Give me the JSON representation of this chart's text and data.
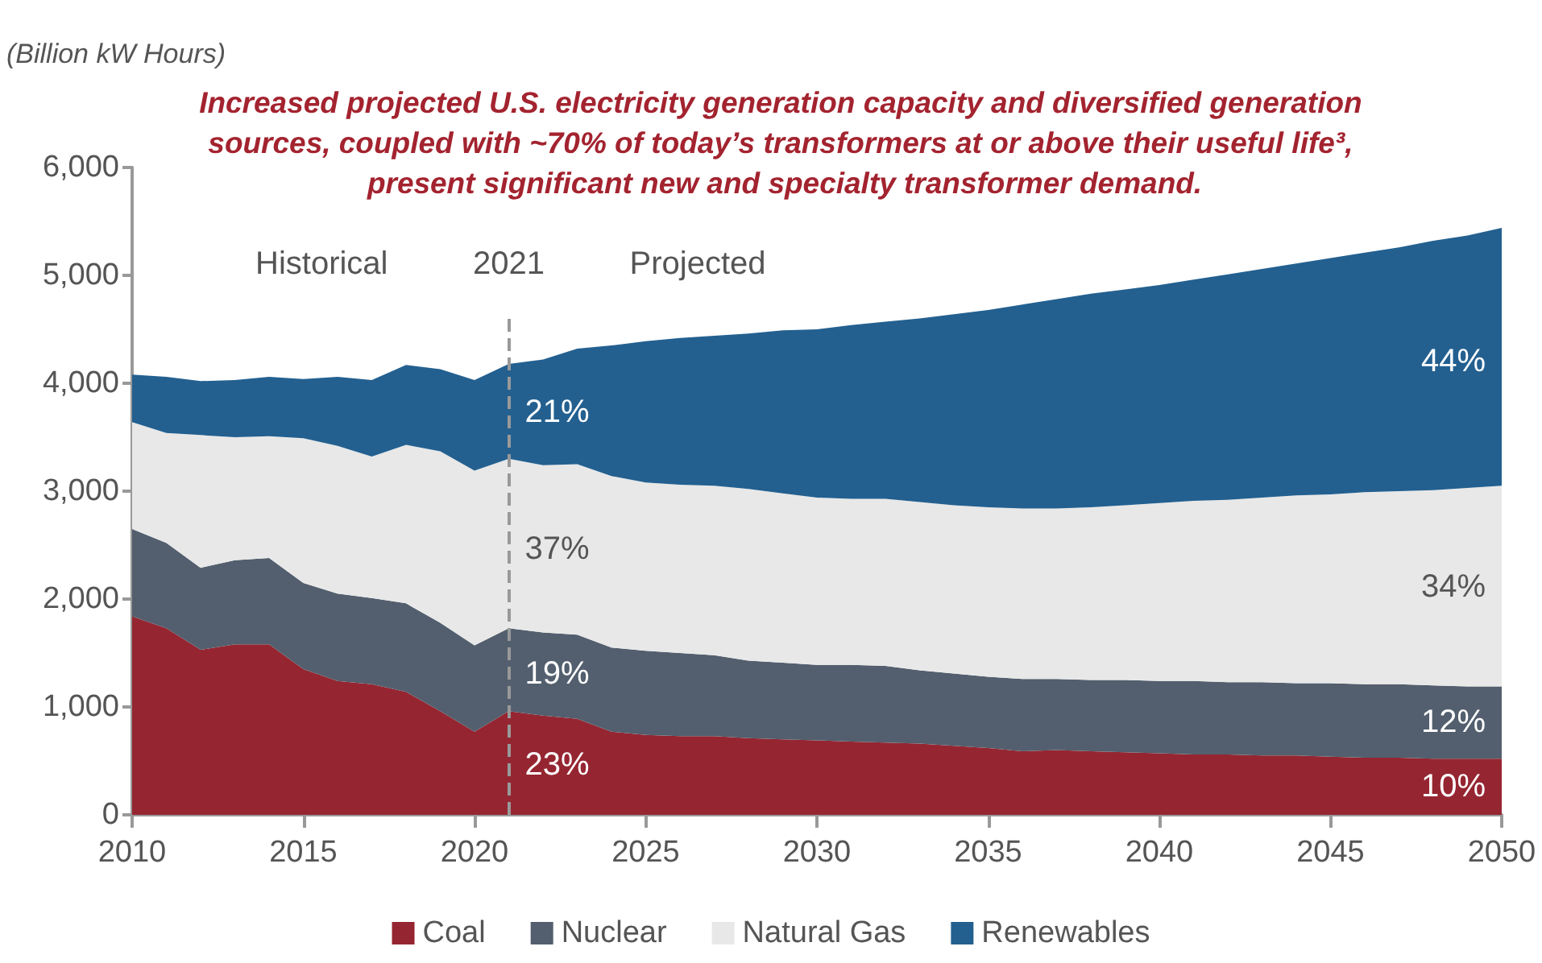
{
  "chart_data": {
    "type": "area",
    "stacked": true,
    "title": "Increased projected U.S. electricity generation capacity and diversified generation sources, coupled with ~70% of today’s transformers at or above their useful life³, present significant new and specialty transformer demand.",
    "ylabel": "(Billion kW Hours)",
    "x": [
      2010,
      2011,
      2012,
      2013,
      2014,
      2015,
      2016,
      2017,
      2018,
      2019,
      2020,
      2021,
      2022,
      2023,
      2024,
      2025,
      2026,
      2027,
      2028,
      2029,
      2030,
      2031,
      2032,
      2033,
      2034,
      2035,
      2036,
      2037,
      2038,
      2039,
      2040,
      2041,
      2042,
      2043,
      2044,
      2045,
      2046,
      2047,
      2048,
      2049,
      2050
    ],
    "series": [
      {
        "name": "Coal",
        "color": "#952631",
        "values": [
          1840,
          1730,
          1530,
          1580,
          1580,
          1350,
          1240,
          1210,
          1140,
          960,
          770,
          960,
          920,
          890,
          770,
          740,
          730,
          730,
          710,
          700,
          690,
          680,
          670,
          660,
          640,
          620,
          590,
          600,
          590,
          580,
          570,
          560,
          560,
          550,
          550,
          540,
          530,
          530,
          520,
          520,
          520
        ]
      },
      {
        "name": "Nuclear",
        "color": "#535f6e",
        "values": [
          810,
          790,
          760,
          780,
          800,
          800,
          810,
          800,
          820,
          820,
          800,
          770,
          770,
          780,
          780,
          780,
          770,
          750,
          720,
          710,
          700,
          710,
          710,
          680,
          670,
          660,
          670,
          660,
          660,
          670,
          670,
          680,
          670,
          680,
          670,
          680,
          680,
          680,
          680,
          670,
          670
        ]
      },
      {
        "name": "Natural Gas",
        "color": "#e8e8e8",
        "values": [
          990,
          1020,
          1230,
          1140,
          1130,
          1340,
          1370,
          1310,
          1470,
          1590,
          1620,
          1570,
          1550,
          1580,
          1590,
          1560,
          1560,
          1570,
          1590,
          1570,
          1550,
          1540,
          1550,
          1560,
          1560,
          1570,
          1580,
          1580,
          1600,
          1620,
          1650,
          1670,
          1690,
          1710,
          1740,
          1750,
          1780,
          1790,
          1810,
          1840,
          1860
        ]
      },
      {
        "name": "Renewables",
        "color": "#236090",
        "values": [
          440,
          520,
          500,
          530,
          550,
          550,
          640,
          710,
          740,
          760,
          840,
          880,
          980,
          1070,
          1210,
          1310,
          1360,
          1390,
          1440,
          1510,
          1560,
          1610,
          1640,
          1700,
          1770,
          1830,
          1890,
          1940,
          1980,
          2000,
          2020,
          2050,
          2090,
          2120,
          2150,
          2190,
          2220,
          2260,
          2310,
          2340,
          2390
        ]
      }
    ],
    "xlim": [
      2010,
      2050
    ],
    "xticks": [
      2010,
      2015,
      2020,
      2025,
      2030,
      2035,
      2040,
      2045,
      2050
    ],
    "ylim": [
      0,
      6000
    ],
    "yticks": [
      {
        "value": 0,
        "label": "0"
      },
      {
        "value": 1000,
        "label": "1,000"
      },
      {
        "value": 2000,
        "label": "2,000"
      },
      {
        "value": 3000,
        "label": "3,000"
      },
      {
        "value": 4000,
        "label": "4,000"
      },
      {
        "value": 5000,
        "label": "5,000"
      },
      {
        "value": 6000,
        "label": "6,000"
      }
    ],
    "grid": false,
    "legend": "bottom",
    "ref_lines": [
      {
        "axis": "x",
        "value": 2021,
        "label": "2021",
        "color": "#999999",
        "line_style": "dashed"
      }
    ],
    "annotations": [
      "Historical",
      "Projected",
      "23%",
      "19%",
      "37%",
      "21%",
      "10%",
      "12%",
      "34%",
      "44%"
    ]
  }
}
